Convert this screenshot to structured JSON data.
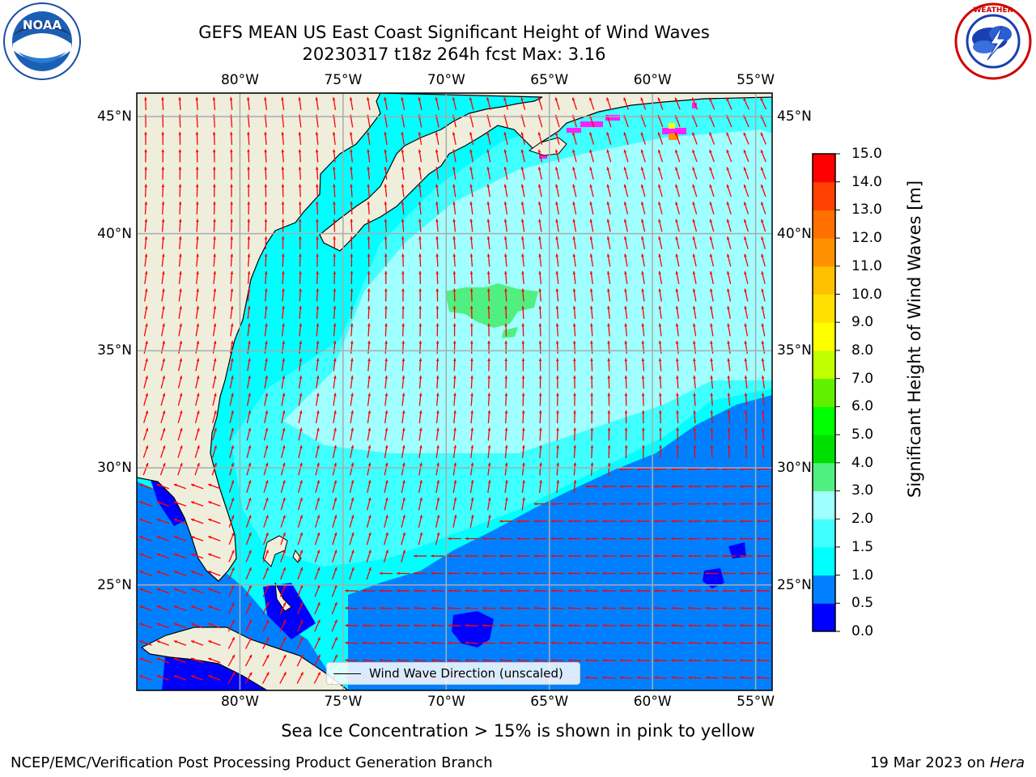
{
  "header": {
    "title_line1": "GEFS MEAN US East Coast Significant Height of Wind Waves",
    "title_line2": "20230317 t18z 264h fcst   Max: 3.16"
  },
  "logos": {
    "left": {
      "icon": "noaa-logo-icon",
      "text": "NOAA",
      "ring_text": "NATIONAL OCEANIC AND ATMOSPHERIC ADMINISTRATION · U.S. DEPARTMENT OF COMMERCE"
    },
    "right": {
      "icon": "nws-logo-icon",
      "ring_text": "NATIONAL WEATHER SERVICE"
    }
  },
  "map": {
    "lon_labels": [
      "80°W",
      "75°W",
      "70°W",
      "65°W",
      "60°W",
      "55°W"
    ],
    "lat_labels": [
      "45°N",
      "40°N",
      "35°N",
      "30°N",
      "25°N"
    ],
    "lon_values": [
      -80,
      -75,
      -70,
      -65,
      -60,
      -55
    ],
    "lat_values": [
      45,
      40,
      35,
      30,
      25
    ],
    "extent": {
      "lon_min": -85,
      "lon_max": -54.2,
      "lat_min": 20.5,
      "lat_max": 46
    },
    "legend_label": "Wind Wave Direction (unscaled)",
    "land_color": "#efeedc",
    "arrow_color": "#ff0000"
  },
  "colorbar": {
    "label": "Significant Height of Wind Waves [m]",
    "ticks": [
      "0.0",
      "0.5",
      "1.0",
      "1.5",
      "2.0",
      "3.0",
      "4.0",
      "5.0",
      "6.0",
      "7.0",
      "8.0",
      "9.0",
      "10.0",
      "11.0",
      "12.0",
      "13.0",
      "14.0",
      "15.0"
    ],
    "colors": [
      "#0000ff",
      "#0080ff",
      "#00ffff",
      "#40ffff",
      "#a0ffff",
      "#50f080",
      "#00e000",
      "#00ff00",
      "#60f000",
      "#c0ff00",
      "#ffff00",
      "#ffe000",
      "#ffc000",
      "#ff9000",
      "#ff7000",
      "#ff4000",
      "#ff0000"
    ]
  },
  "footer": {
    "ice_note": "Sea Ice Concentration > 15% is shown in pink to yellow",
    "credit": "NCEP/EMC/Verification Post Processing Product Generation Branch",
    "date_prefix": "19 Mar 2023 on ",
    "machine": "Hera"
  }
}
